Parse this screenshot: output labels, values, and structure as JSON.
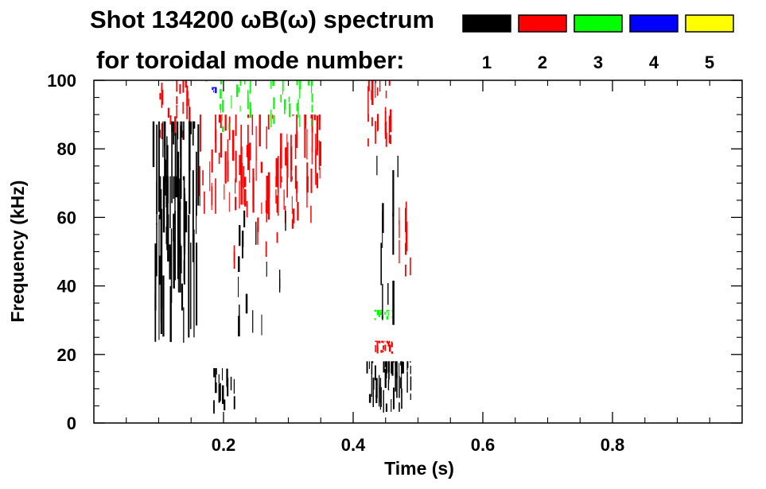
{
  "chart_data": {
    "type": "heatmap",
    "title_line1": "Shot 134200 ωB(ω) spectrum",
    "title_line2": "for toroidal mode number:",
    "xlabel": "Time (s)",
    "ylabel": "Frequency (kHz)",
    "xlim": [
      0.0,
      1.0
    ],
    "ylim": [
      0,
      100
    ],
    "x_ticks": [
      0.2,
      0.4,
      0.6,
      0.8
    ],
    "x_tick_labels": [
      "0.2",
      "0.4",
      "0.6",
      "0.8"
    ],
    "y_ticks": [
      0,
      20,
      40,
      60,
      80,
      100
    ],
    "y_tick_labels": [
      "0",
      "20",
      "40",
      "60",
      "80",
      "100"
    ],
    "legend": [
      {
        "mode": "1",
        "color": "#000000"
      },
      {
        "mode": "2",
        "color": "#ff0000"
      },
      {
        "mode": "3",
        "color": "#00ff00"
      },
      {
        "mode": "4",
        "color": "#0000ff"
      },
      {
        "mode": "5",
        "color": "#ffff00"
      }
    ],
    "regions": [
      {
        "mode": 1,
        "t": [
          0.09,
          0.16
        ],
        "f": [
          22,
          88
        ],
        "density": 0.9
      },
      {
        "mode": 1,
        "t": [
          0.1,
          0.14
        ],
        "f": [
          35,
          72
        ],
        "density": 0.95
      },
      {
        "mode": 1,
        "t": [
          0.18,
          0.22
        ],
        "f": [
          2,
          16
        ],
        "density": 0.55
      },
      {
        "mode": 1,
        "t": [
          0.22,
          0.3
        ],
        "f": [
          25,
          62
        ],
        "density": 0.18
      },
      {
        "mode": 1,
        "t": [
          0.42,
          0.49
        ],
        "f": [
          3,
          18
        ],
        "density": 0.85
      },
      {
        "mode": 1,
        "t": [
          0.43,
          0.47
        ],
        "f": [
          28,
          78
        ],
        "density": 0.35
      },
      {
        "mode": 2,
        "t": [
          0.1,
          0.15
        ],
        "f": [
          82,
          100
        ],
        "density": 0.5
      },
      {
        "mode": 2,
        "t": [
          0.16,
          0.35
        ],
        "f": [
          58,
          90
        ],
        "density": 0.5
      },
      {
        "mode": 2,
        "t": [
          0.2,
          0.34
        ],
        "f": [
          45,
          72
        ],
        "density": 0.18
      },
      {
        "mode": 2,
        "t": [
          0.42,
          0.46
        ],
        "f": [
          80,
          100
        ],
        "density": 0.65
      },
      {
        "mode": 2,
        "t": [
          0.47,
          0.49
        ],
        "f": [
          42,
          68
        ],
        "density": 0.45
      },
      {
        "mode": 2,
        "t": [
          0.43,
          0.46
        ],
        "f": [
          20,
          24
        ],
        "density": 0.85
      },
      {
        "mode": 3,
        "t": [
          0.17,
          0.34
        ],
        "f": [
          84,
          100
        ],
        "density": 0.28
      },
      {
        "mode": 3,
        "t": [
          0.43,
          0.46
        ],
        "f": [
          30,
          33
        ],
        "density": 0.6
      },
      {
        "mode": 4,
        "t": [
          0.18,
          0.19
        ],
        "f": [
          95,
          98
        ],
        "density": 0.9
      }
    ]
  }
}
